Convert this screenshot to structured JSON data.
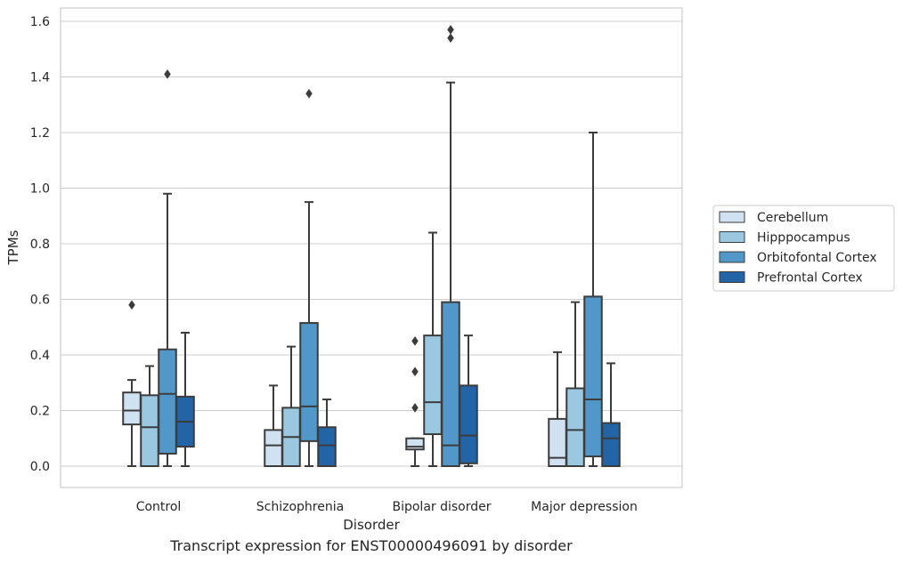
{
  "caption": "Transcript expression for ENST00000496091 by disorder",
  "chart_data": {
    "type": "box",
    "xlabel": "Disorder",
    "ylabel": "TPMs",
    "ylim": [
      -0.075,
      1.65
    ],
    "yticks": [
      0.0,
      0.2,
      0.4,
      0.6,
      0.8,
      1.0,
      1.2,
      1.4,
      1.6
    ],
    "ytick_labels": [
      "0.0",
      "0.2",
      "0.4",
      "0.6",
      "0.8",
      "1.0",
      "1.2",
      "1.4",
      "1.6"
    ],
    "grid": "horizontal",
    "legend_position": "right",
    "categories": [
      "Control",
      "Schizophrenia",
      "Bipolar disorder",
      "Major depression"
    ],
    "series": [
      {
        "name": "Cerebellum",
        "color": "#d0e1f2",
        "boxes": [
          {
            "whislo": 0.0,
            "q1": 0.15,
            "med": 0.2,
            "q3": 0.265,
            "whishi": 0.31,
            "fliers": [
              0.58
            ]
          },
          {
            "whislo": 0.0,
            "q1": 0.0,
            "med": 0.075,
            "q3": 0.13,
            "whishi": 0.29,
            "fliers": []
          },
          {
            "whislo": 0.0,
            "q1": 0.06,
            "med": 0.07,
            "q3": 0.1,
            "whishi": 0.1,
            "fliers": [
              0.21,
              0.34,
              0.45
            ]
          },
          {
            "whislo": 0.0,
            "q1": 0.0,
            "med": 0.03,
            "q3": 0.17,
            "whishi": 0.41,
            "fliers": []
          }
        ]
      },
      {
        "name": "Hipppocampus",
        "color": "#9ac8e0",
        "boxes": [
          {
            "whislo": 0.0,
            "q1": 0.0,
            "med": 0.14,
            "q3": 0.255,
            "whishi": 0.36,
            "fliers": []
          },
          {
            "whislo": 0.0,
            "q1": 0.0,
            "med": 0.105,
            "q3": 0.21,
            "whishi": 0.43,
            "fliers": []
          },
          {
            "whislo": 0.0,
            "q1": 0.115,
            "med": 0.23,
            "q3": 0.47,
            "whishi": 0.84,
            "fliers": []
          },
          {
            "whislo": 0.0,
            "q1": 0.0,
            "med": 0.13,
            "q3": 0.28,
            "whishi": 0.59,
            "fliers": []
          }
        ]
      },
      {
        "name": "Orbitofontal Cortex",
        "color": "#5198c9",
        "boxes": [
          {
            "whislo": 0.0,
            "q1": 0.045,
            "med": 0.26,
            "q3": 0.42,
            "whishi": 0.98,
            "fliers": [
              1.41
            ]
          },
          {
            "whislo": 0.0,
            "q1": 0.09,
            "med": 0.215,
            "q3": 0.515,
            "whishi": 0.95,
            "fliers": [
              1.34
            ]
          },
          {
            "whislo": 0.0,
            "q1": 0.0,
            "med": 0.075,
            "q3": 0.59,
            "whishi": 1.38,
            "fliers": [
              1.54,
              1.57
            ]
          },
          {
            "whislo": 0.0,
            "q1": 0.035,
            "med": 0.24,
            "q3": 0.61,
            "whishi": 1.2,
            "fliers": []
          }
        ]
      },
      {
        "name": "Prefrontal Cortex",
        "color": "#2364a6",
        "boxes": [
          {
            "whislo": 0.0,
            "q1": 0.07,
            "med": 0.16,
            "q3": 0.25,
            "whishi": 0.48,
            "fliers": []
          },
          {
            "whislo": 0.0,
            "q1": 0.0,
            "med": 0.075,
            "q3": 0.14,
            "whishi": 0.24,
            "fliers": []
          },
          {
            "whislo": 0.0,
            "q1": 0.01,
            "med": 0.11,
            "q3": 0.29,
            "whishi": 0.47,
            "fliers": []
          },
          {
            "whislo": 0.0,
            "q1": 0.0,
            "med": 0.1,
            "q3": 0.155,
            "whishi": 0.37,
            "fliers": []
          }
        ]
      }
    ]
  }
}
